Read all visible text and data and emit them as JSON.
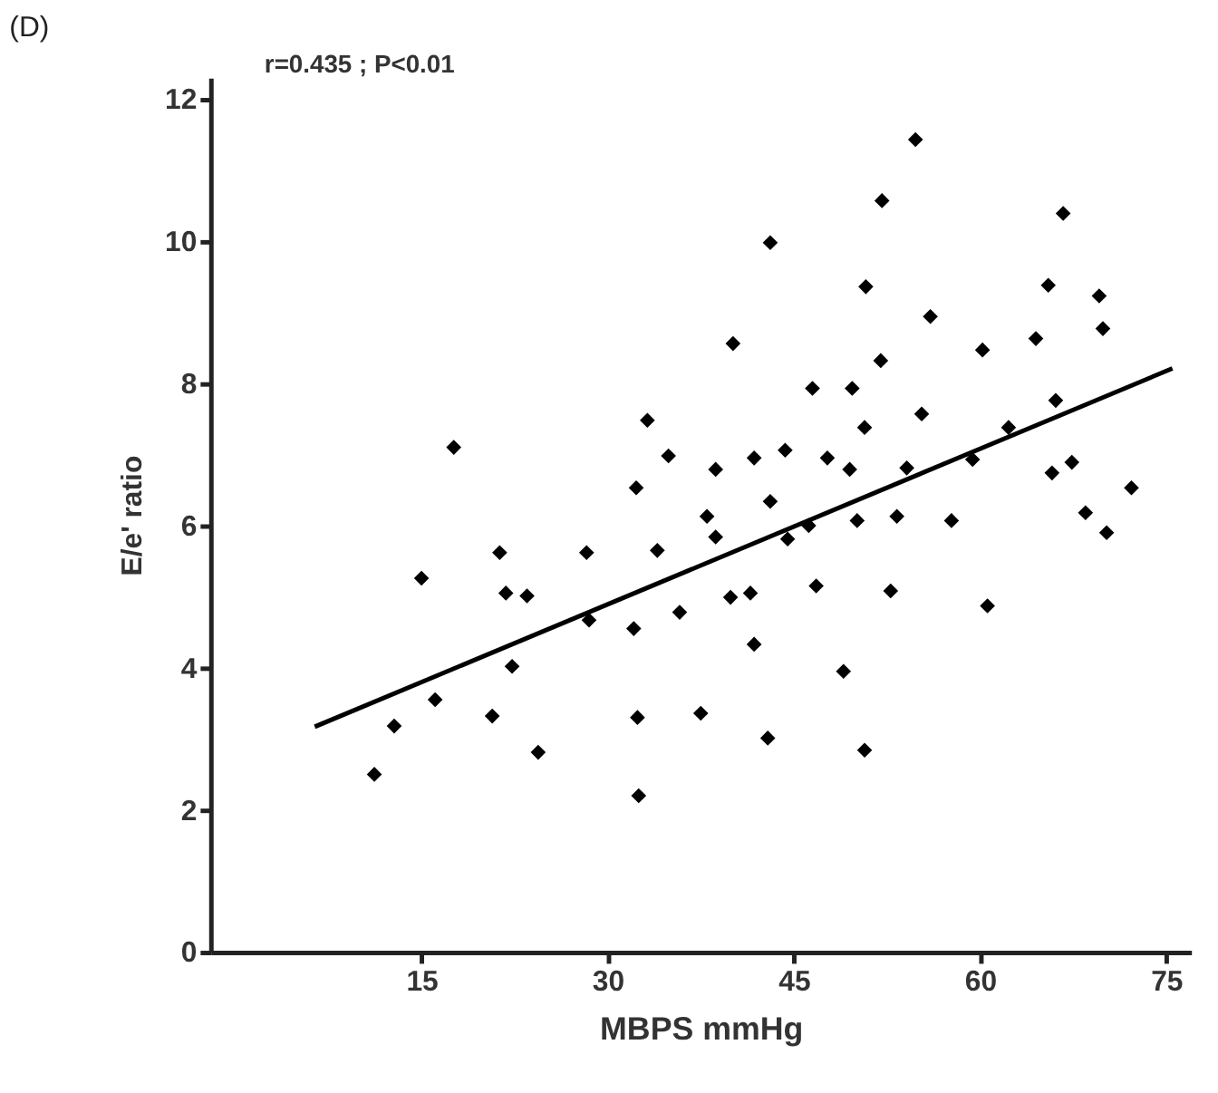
{
  "chart_data": {
    "type": "scatter",
    "title": "(D)",
    "xlabel": "MBPS mmHg",
    "ylabel": "E/e' ratio",
    "annotations": [
      "r=0.435 ; P<0.01"
    ],
    "xlim": [
      -2,
      77
    ],
    "ylim": [
      0,
      12.3
    ],
    "xticks": [
      15,
      30,
      45,
      60,
      75
    ],
    "yticks": [
      0,
      2,
      4,
      6,
      8,
      10,
      12
    ],
    "grid": false,
    "series": [
      {
        "color": "#000000",
        "marker": "diamond",
        "x": [
          17.6,
          33.2,
          34.9,
          38.7,
          32.3,
          38.0,
          38.7,
          21.3,
          28.3,
          34.0,
          15.0,
          21.8,
          23.5,
          28.5,
          32.1,
          35.8,
          22.3,
          16.1,
          12.8,
          20.7,
          32.4,
          37.5,
          24.4,
          11.2,
          32.5,
          39.9,
          41.5,
          46.8,
          52.8,
          60.6,
          41.8,
          49.0,
          42.9,
          50.7,
          54.8,
          52.1,
          66.7,
          43.1,
          50.8,
          65.5,
          69.6,
          56.0,
          69.9,
          40.1,
          60.2,
          64.5,
          52.0,
          46.5,
          49.7,
          66.1,
          55.3,
          50.7,
          62.3,
          44.3,
          41.8,
          47.7,
          49.5,
          54.1,
          59.4,
          67.4,
          65.8,
          72.2,
          43.1,
          44.5,
          46.2,
          50.1,
          53.3,
          57.7,
          68.5,
          70.2
        ],
        "values": [
          7.1,
          7.48,
          6.98,
          6.79,
          6.53,
          6.13,
          5.84,
          5.62,
          5.62,
          5.65,
          5.26,
          5.05,
          5.01,
          4.67,
          4.55,
          4.78,
          4.02,
          3.55,
          3.18,
          3.32,
          3.3,
          3.36,
          2.81,
          2.5,
          2.2,
          4.99,
          5.05,
          5.15,
          5.08,
          4.87,
          4.33,
          3.95,
          3.01,
          2.84,
          11.43,
          10.57,
          10.39,
          9.98,
          9.36,
          9.38,
          9.23,
          8.94,
          8.77,
          8.56,
          8.47,
          8.63,
          8.32,
          7.93,
          7.93,
          7.76,
          7.57,
          7.38,
          7.38,
          7.06,
          6.95,
          6.95,
          6.79,
          6.81,
          6.93,
          6.89,
          6.74,
          6.53,
          6.34,
          5.81,
          6.0,
          6.07,
          6.13,
          6.07,
          6.18,
          5.9
        ]
      },
      {
        "type": "line",
        "color": "#000000",
        "marker": "none",
        "x": [
          6.4,
          75.5
        ],
        "values": [
          3.17,
          8.21
        ]
      }
    ]
  }
}
